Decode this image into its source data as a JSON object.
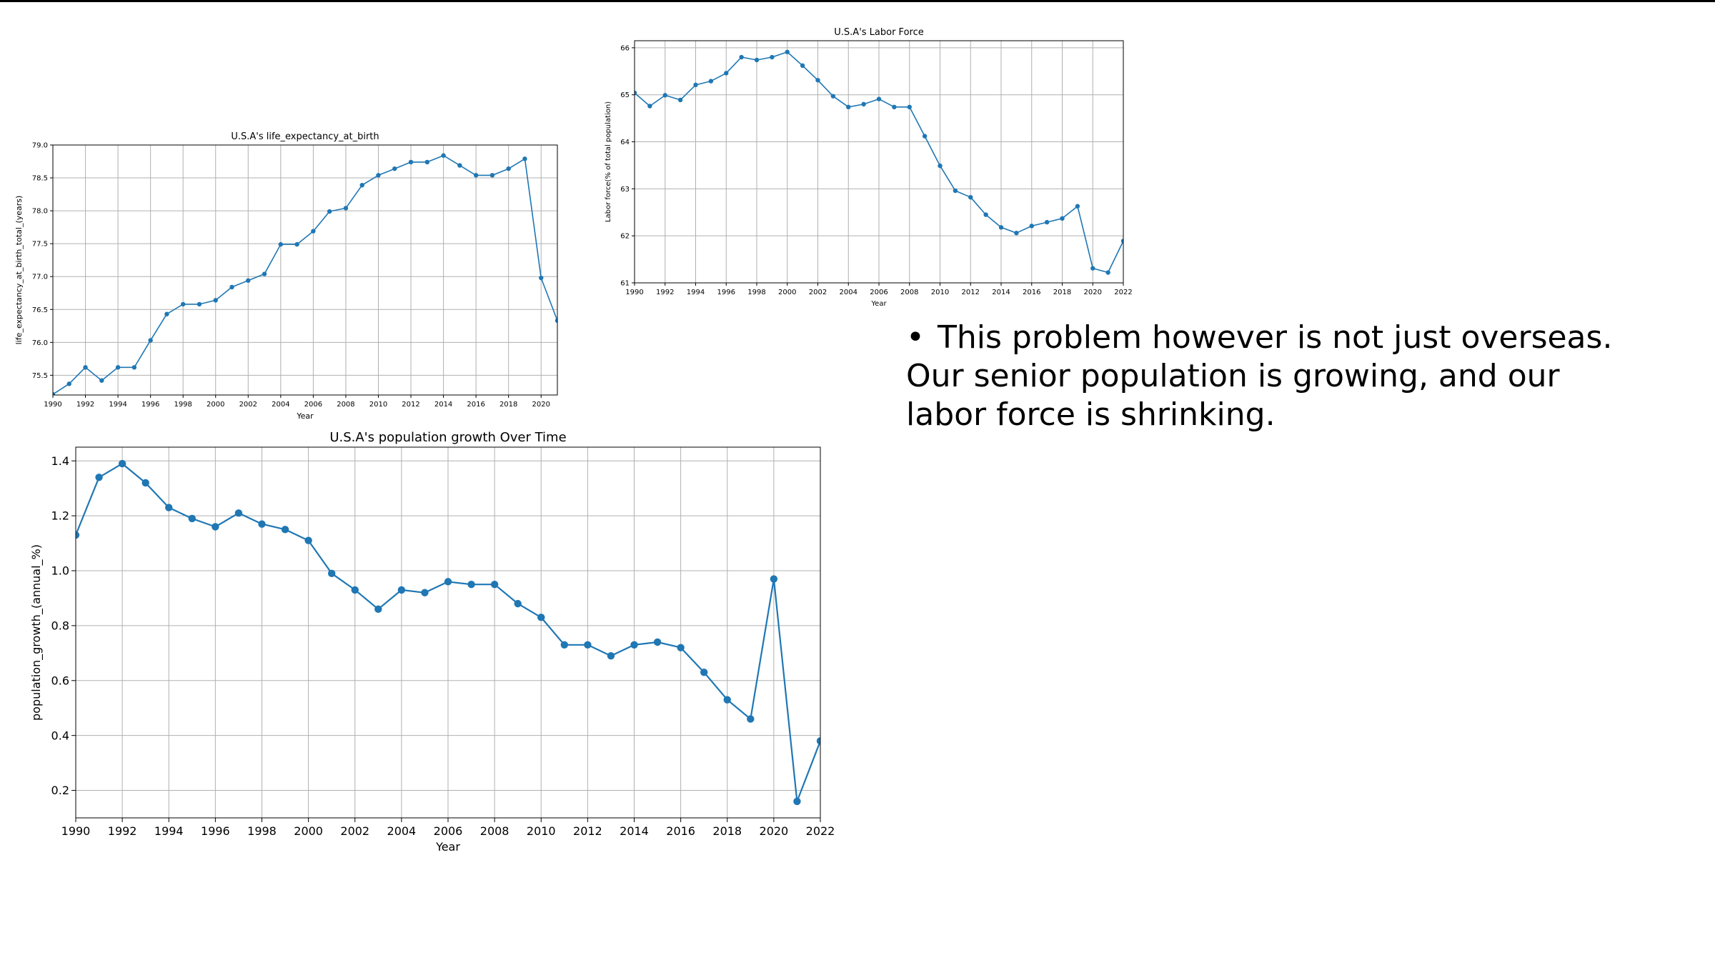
{
  "slide": {
    "bullet_lines": [
      "This problem however is not just overseas.",
      "Our senior population is growing, and our",
      "labor force is shrinking."
    ],
    "bullet_char": "•"
  },
  "colors": {
    "line": "#1f77b4",
    "grid": "#b0b0b0",
    "axis": "#000000",
    "rule": "#000000"
  },
  "chart_data": [
    {
      "id": "life",
      "type": "line",
      "title": "U.S.A's life_expectancy_at_birth",
      "xlabel": "Year",
      "ylabel": "life_expectancy_at_birth_total_(years)",
      "x": [
        1990,
        1991,
        1992,
        1993,
        1994,
        1995,
        1996,
        1997,
        1998,
        1999,
        2000,
        2001,
        2002,
        2003,
        2004,
        2005,
        2006,
        2007,
        2008,
        2009,
        2010,
        2011,
        2012,
        2013,
        2014,
        2015,
        2016,
        2017,
        2018,
        2019,
        2020,
        2021
      ],
      "series": [
        {
          "values": [
            75.21,
            75.37,
            75.62,
            75.42,
            75.62,
            75.62,
            76.03,
            76.43,
            76.58,
            76.58,
            76.64,
            76.84,
            76.94,
            77.04,
            77.49,
            77.49,
            77.69,
            77.99,
            78.04,
            78.39,
            78.54,
            78.64,
            78.74,
            78.74,
            78.84,
            78.69,
            78.54,
            78.54,
            78.64,
            78.79,
            76.98,
            76.33
          ]
        }
      ],
      "xlim": [
        1990,
        2021
      ],
      "ylim": [
        75.2,
        79.0
      ],
      "xticks": [
        1990,
        1992,
        1994,
        1996,
        1998,
        2000,
        2002,
        2004,
        2006,
        2008,
        2010,
        2012,
        2014,
        2016,
        2018,
        2020
      ],
      "yticks": [
        "75.5",
        "76.0",
        "76.5",
        "77.0",
        "77.5",
        "78.0",
        "78.5",
        "79.0"
      ],
      "grid": true
    },
    {
      "id": "labor",
      "type": "line",
      "title": "U.S.A's Labor Force",
      "xlabel": "Year",
      "ylabel": "Labor force(% of total population)",
      "x": [
        1990,
        1991,
        1992,
        1993,
        1994,
        1995,
        1996,
        1997,
        1998,
        1999,
        2000,
        2001,
        2002,
        2003,
        2004,
        2005,
        2006,
        2007,
        2008,
        2009,
        2010,
        2011,
        2012,
        2013,
        2014,
        2015,
        2016,
        2017,
        2018,
        2019,
        2020,
        2021,
        2022
      ],
      "series": [
        {
          "values": [
            65.04,
            64.76,
            64.99,
            64.89,
            65.21,
            65.29,
            65.46,
            65.8,
            65.74,
            65.8,
            65.91,
            65.62,
            65.31,
            64.97,
            64.74,
            64.8,
            64.91,
            64.74,
            64.74,
            64.12,
            63.49,
            62.96,
            62.82,
            62.45,
            62.18,
            62.06,
            62.21,
            62.29,
            62.37,
            62.63,
            61.31,
            61.22,
            61.89
          ]
        }
      ],
      "xlim": [
        1990,
        2022
      ],
      "ylim": [
        61.0,
        66.15
      ],
      "xticks": [
        1990,
        1992,
        1994,
        1996,
        1998,
        2000,
        2002,
        2004,
        2006,
        2008,
        2010,
        2012,
        2014,
        2016,
        2018,
        2020,
        2022
      ],
      "yticks": [
        "61",
        "62",
        "63",
        "64",
        "65",
        "66"
      ],
      "grid": true
    },
    {
      "id": "pop",
      "type": "line",
      "title": "U.S.A's population growth Over Time",
      "xlabel": "Year",
      "ylabel": "population_growth_(annual_%)",
      "x": [
        1990,
        1991,
        1992,
        1993,
        1994,
        1995,
        1996,
        1997,
        1998,
        1999,
        2000,
        2001,
        2002,
        2003,
        2004,
        2005,
        2006,
        2007,
        2008,
        2009,
        2010,
        2011,
        2012,
        2013,
        2014,
        2015,
        2016,
        2017,
        2018,
        2019,
        2020,
        2021,
        2022
      ],
      "series": [
        {
          "values": [
            1.13,
            1.34,
            1.39,
            1.32,
            1.23,
            1.19,
            1.16,
            1.21,
            1.17,
            1.15,
            1.11,
            0.99,
            0.93,
            0.86,
            0.93,
            0.92,
            0.96,
            0.95,
            0.95,
            0.88,
            0.83,
            0.73,
            0.73,
            0.69,
            0.73,
            0.74,
            0.72,
            0.63,
            0.53,
            0.46,
            0.97,
            0.16,
            0.38
          ]
        }
      ],
      "xlim": [
        1990,
        2022
      ],
      "ylim": [
        0.1,
        1.45
      ],
      "xticks": [
        1990,
        1992,
        1994,
        1996,
        1998,
        2000,
        2002,
        2004,
        2006,
        2008,
        2010,
        2012,
        2014,
        2016,
        2018,
        2020,
        2022
      ],
      "yticks": [
        "0.2",
        "0.4",
        "0.6",
        "0.8",
        "1.0",
        "1.2",
        "1.4"
      ],
      "grid": true
    }
  ]
}
